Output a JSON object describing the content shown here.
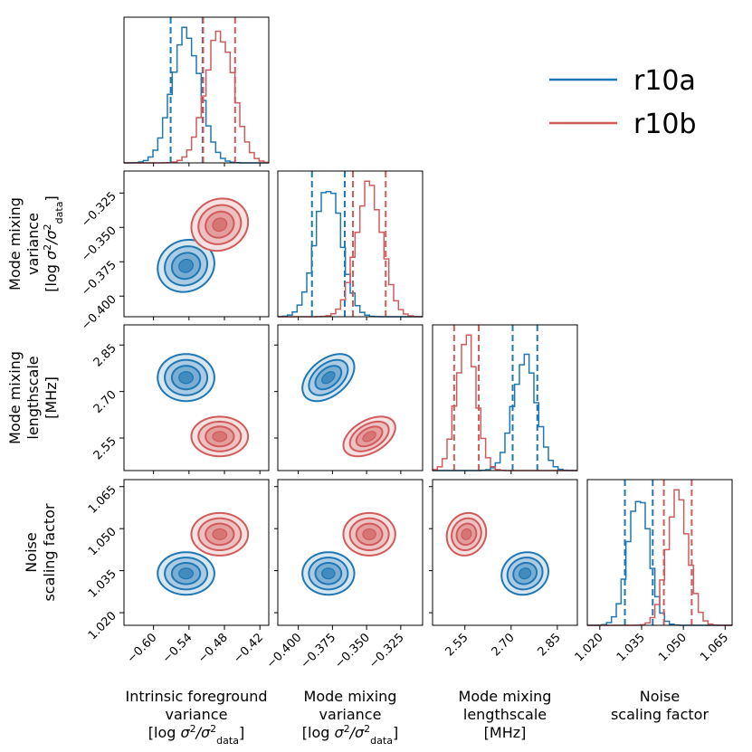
{
  "chart_data": {
    "type": "corner",
    "parameters": [
      {
        "key": "fg",
        "label_lines": [
          "Intrinsic foreground",
          "variance",
          "[log σ²/σ²data]"
        ],
        "ticks": [
          -0.6,
          -0.54,
          -0.48,
          -0.42
        ],
        "tick_labels": [
          "−0.60",
          "−0.54",
          "−0.48",
          "−0.42"
        ],
        "range": [
          -0.65,
          -0.405
        ]
      },
      {
        "key": "mmv",
        "label_lines": [
          "Mode mixing",
          "variance",
          "[log σ²/σ²data]"
        ],
        "ticks": [
          -0.4,
          -0.375,
          -0.35,
          -0.325
        ],
        "tick_labels": [
          "−0.400",
          "−0.375",
          "−0.350",
          "−0.325"
        ],
        "range": [
          -0.415,
          -0.309
        ]
      },
      {
        "key": "mml",
        "label_lines": [
          "Mode mixing",
          "lengthscale",
          "[MHz]"
        ],
        "ticks": [
          2.55,
          2.7,
          2.85
        ],
        "tick_labels": [
          "2.55",
          "2.70",
          "2.85"
        ],
        "range": [
          2.445,
          2.915
        ]
      },
      {
        "key": "nsf",
        "label_lines": [
          "Noise",
          "scaling factor"
        ],
        "ticks": [
          1.02,
          1.035,
          1.05,
          1.065
        ],
        "tick_labels": [
          "1.020",
          "1.035",
          "1.050",
          "1.065"
        ],
        "range": [
          1.0155,
          1.0675
        ]
      }
    ],
    "series": [
      {
        "name": "r10a",
        "color": "#1f77b4",
        "mean": [
          -0.545,
          -0.378,
          2.745,
          1.034
        ],
        "sigma": [
          0.024,
          0.0095,
          0.038,
          0.0038
        ],
        "quantiles": [
          [
            -0.571,
            -0.517
          ],
          [
            -0.39,
            -0.366
          ],
          [
            2.705,
            2.785
          ],
          [
            1.029,
            1.039
          ]
        ],
        "correlations": [
          [
            1,
            0.1,
            0,
            0
          ],
          [
            0.1,
            1,
            0.45,
            0
          ],
          [
            0,
            0.45,
            1,
            0.1
          ],
          [
            0,
            0,
            0.1,
            1
          ]
        ]
      },
      {
        "name": "r10b",
        "color": "#d05b5b",
        "mean": [
          -0.488,
          -0.348,
          2.555,
          1.048
        ],
        "sigma": [
          0.024,
          0.0095,
          0.032,
          0.0038
        ],
        "quantiles": [
          [
            -0.516,
            -0.462
          ],
          [
            -0.36,
            -0.336
          ],
          [
            2.515,
            2.595
          ],
          [
            1.043,
            1.053
          ]
        ],
        "correlations": [
          [
            1,
            0.1,
            0,
            0
          ],
          [
            0.1,
            1,
            0.45,
            0
          ],
          [
            0,
            0.45,
            1,
            0.1
          ],
          [
            0,
            0,
            0.1,
            1
          ]
        ]
      }
    ],
    "legend": {
      "position": "top-right",
      "entries": [
        "r10a",
        "r10b"
      ]
    }
  }
}
